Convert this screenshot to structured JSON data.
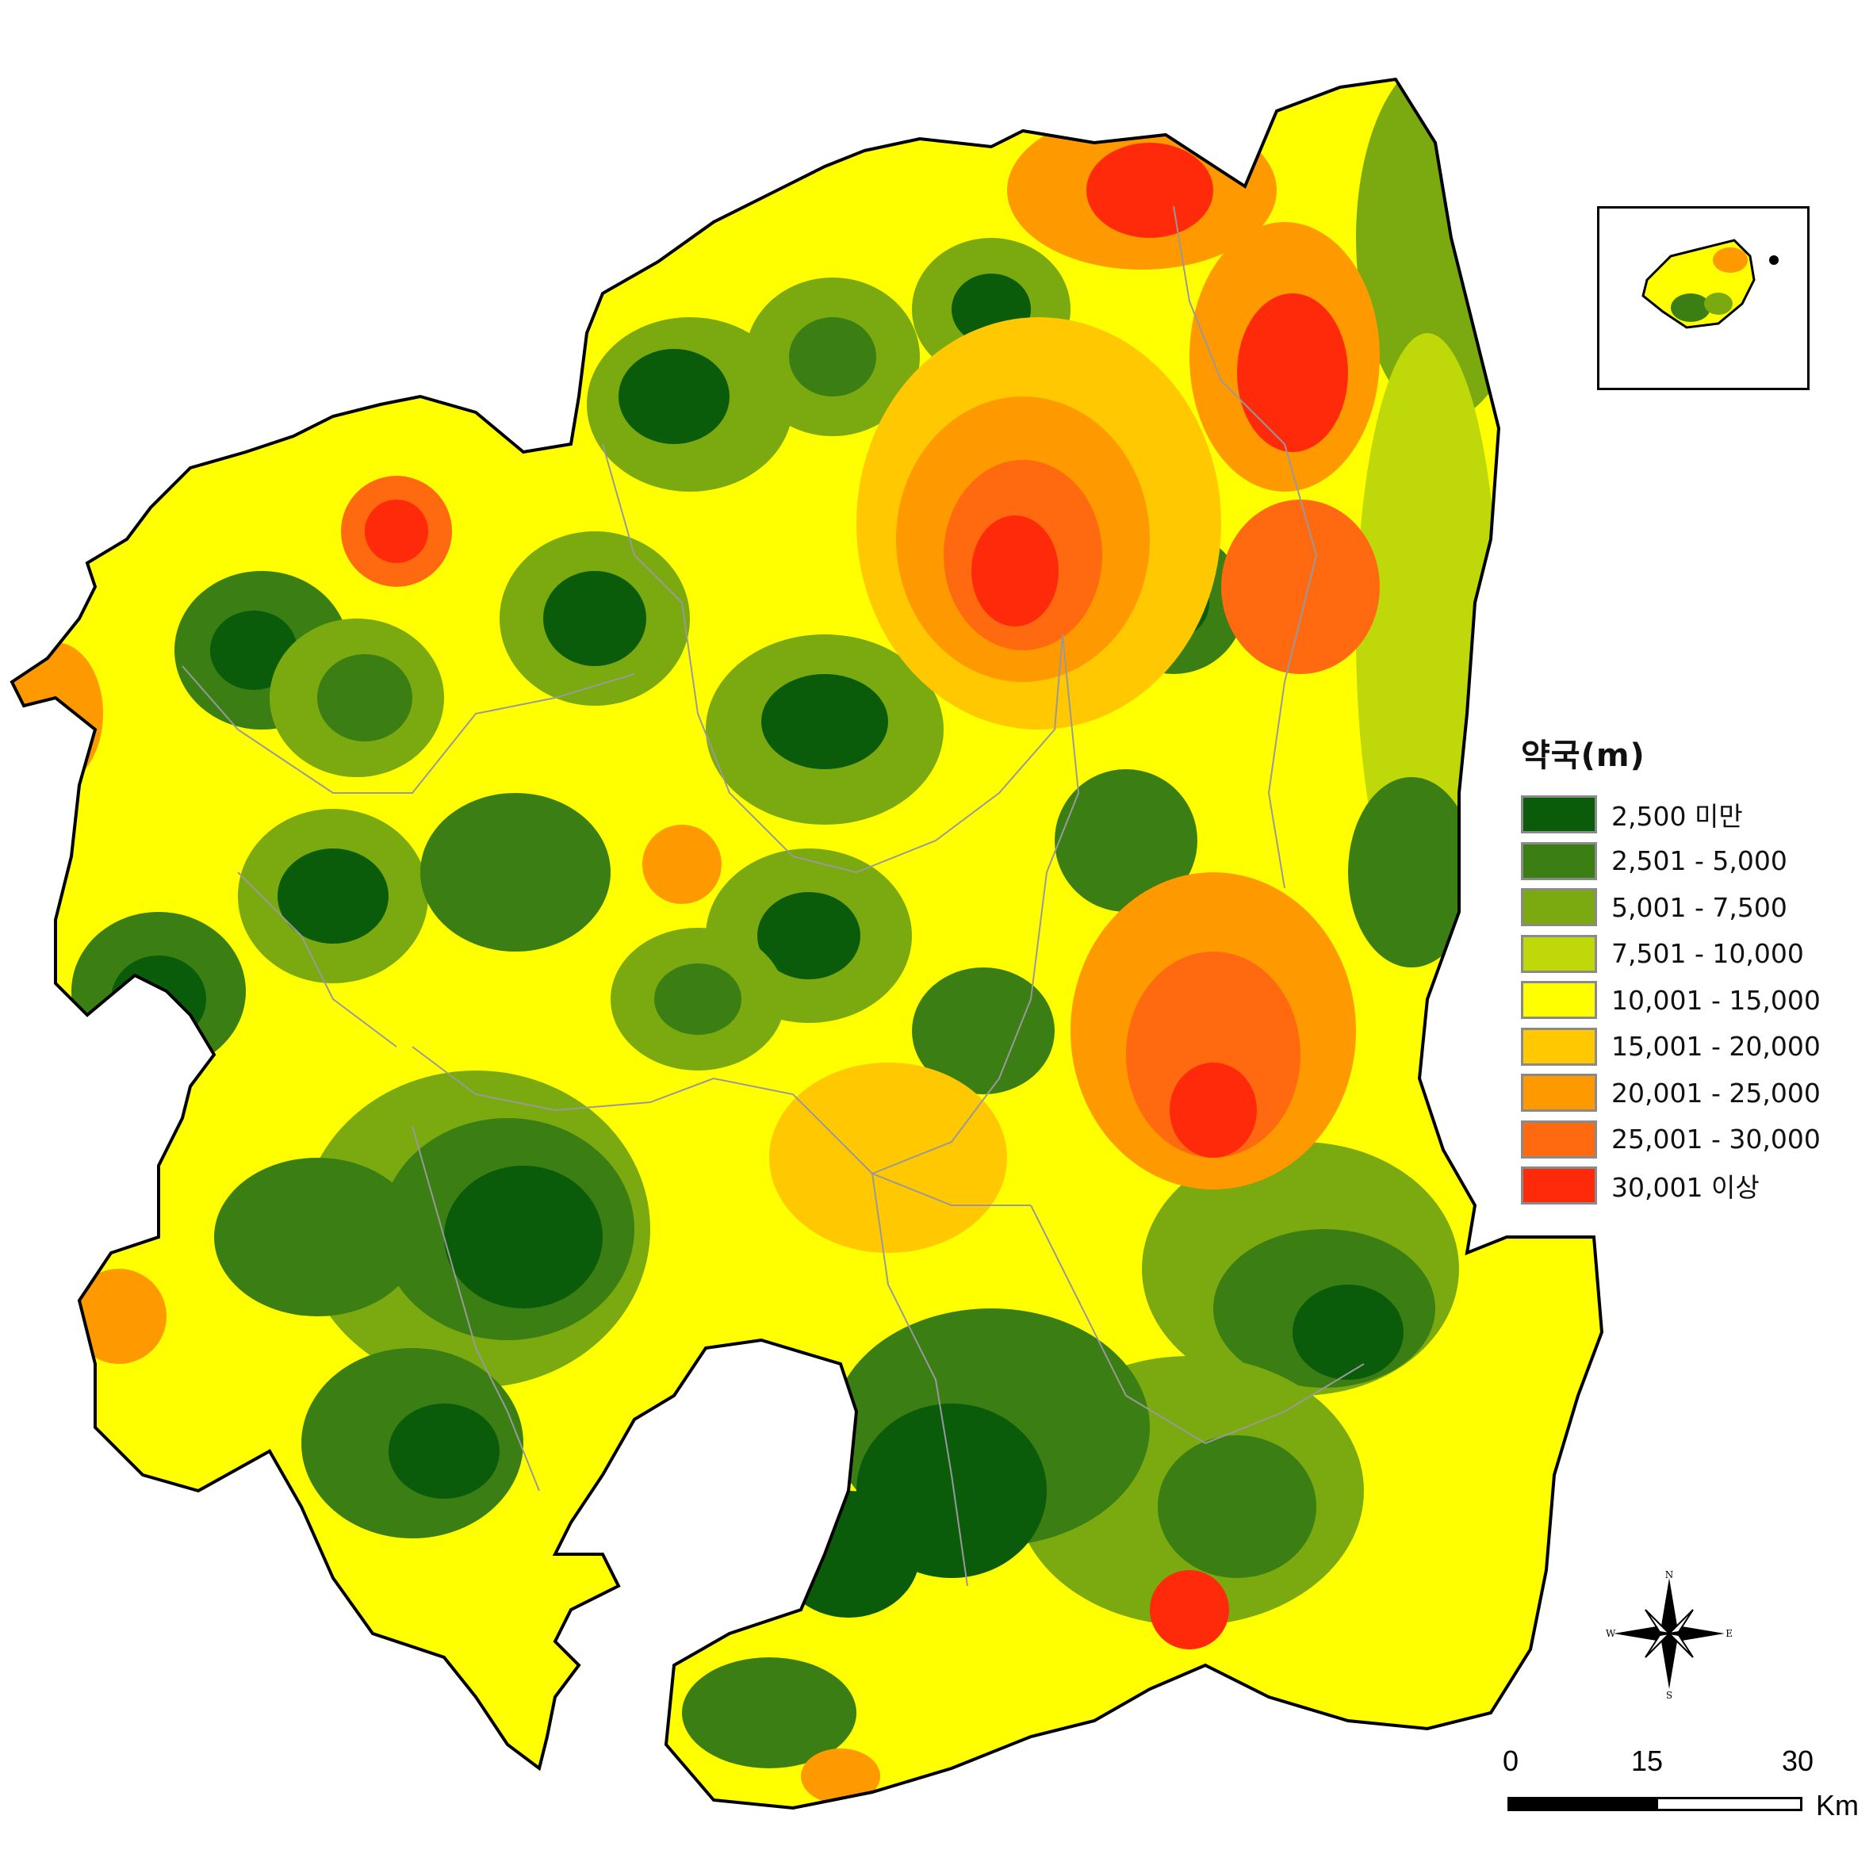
{
  "legend": {
    "title": "약국(m)",
    "items": [
      {
        "label": "2,500 미만",
        "color": "#0a5c0a"
      },
      {
        "label": "2,501  -  5,000",
        "color": "#3a7e14"
      },
      {
        "label": "5,001  -  7,500",
        "color": "#7aaa10"
      },
      {
        "label": "7,501  -  10,000",
        "color": "#bfd80a"
      },
      {
        "label": "10,001  -  15,000",
        "color": "#ffff00"
      },
      {
        "label": "15,001  -  20,000",
        "color": "#ffc800"
      },
      {
        "label": "20,001  -  25,000",
        "color": "#ff9900"
      },
      {
        "label": "25,001  -  30,000",
        "color": "#ff6a10"
      },
      {
        "label": "30,001 이상",
        "color": "#ff2a0a"
      }
    ]
  },
  "scale_bar": {
    "ticks": [
      "0",
      "15",
      "30"
    ],
    "unit": "Km"
  },
  "compass": {
    "n": "N",
    "s": "S",
    "e": "E",
    "w": "W"
  }
}
